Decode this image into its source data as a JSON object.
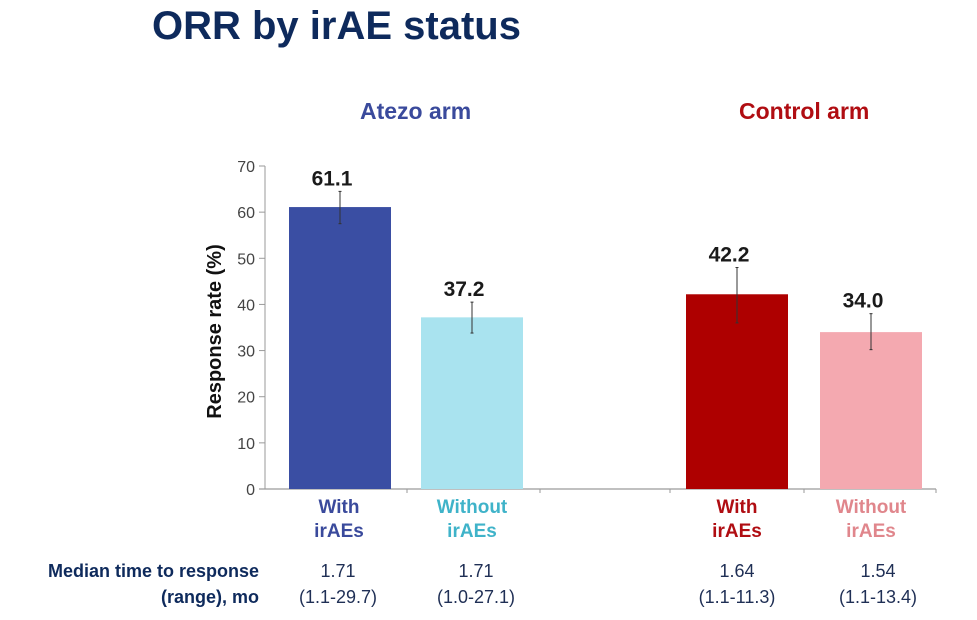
{
  "title": "ORR by irAE status",
  "arms": {
    "atezo": {
      "label": "Atezo arm",
      "color": "#3a4a9c"
    },
    "control": {
      "label": "Control arm",
      "color": "#b00d12"
    }
  },
  "categories": [
    {
      "line1": "With",
      "line2": "irAEs",
      "color": "#3a4a9c"
    },
    {
      "line1": "Without",
      "line2": "irAEs",
      "color": "#3fb3c9"
    },
    {
      "line1": "With",
      "line2": "irAEs",
      "color": "#b00d12"
    },
    {
      "line1": "Without",
      "line2": "irAEs",
      "color": "#e0868c"
    }
  ],
  "median_row": {
    "label_line1": "Median time to response",
    "label_line2": "(range), mo",
    "values": [
      {
        "median": "1.71",
        "range": "(1.1-29.7)"
      },
      {
        "median": "1.71",
        "range": "(1.0-27.1)"
      },
      {
        "median": "1.64",
        "range": "(1.1-11.3)"
      },
      {
        "median": "1.54",
        "range": "(1.1-13.4)"
      }
    ]
  },
  "chart_data": {
    "type": "bar",
    "title": "ORR by irAE status",
    "xlabel": "",
    "ylabel": "Response rate (%)",
    "ylim": [
      0,
      70
    ],
    "yticks": [
      0,
      10,
      20,
      30,
      40,
      50,
      60,
      70
    ],
    "grid": false,
    "groups": [
      "Atezo arm",
      "Control arm"
    ],
    "categories": [
      "Atezo – With irAEs",
      "Atezo – Without irAEs",
      "Control – With irAEs",
      "Control – Without irAEs"
    ],
    "values": [
      61.1,
      37.2,
      42.2,
      34.0
    ],
    "value_labels": [
      "61.1",
      "37.2",
      "42.2",
      "34.0"
    ],
    "error_bars": [
      [
        57.5,
        64.5
      ],
      [
        33.8,
        40.5
      ],
      [
        36.0,
        48.0
      ],
      [
        30.2,
        38.0
      ]
    ],
    "bar_colors": [
      "#3a4ea3",
      "#a9e3ef",
      "#ae0000",
      "#f4a9b0"
    ],
    "median_time_to_response_mo": [
      1.71,
      1.71,
      1.64,
      1.54
    ],
    "median_time_range_mo": [
      "1.1-29.7",
      "1.0-27.1",
      "1.1-11.3",
      "1.1-13.4"
    ]
  }
}
